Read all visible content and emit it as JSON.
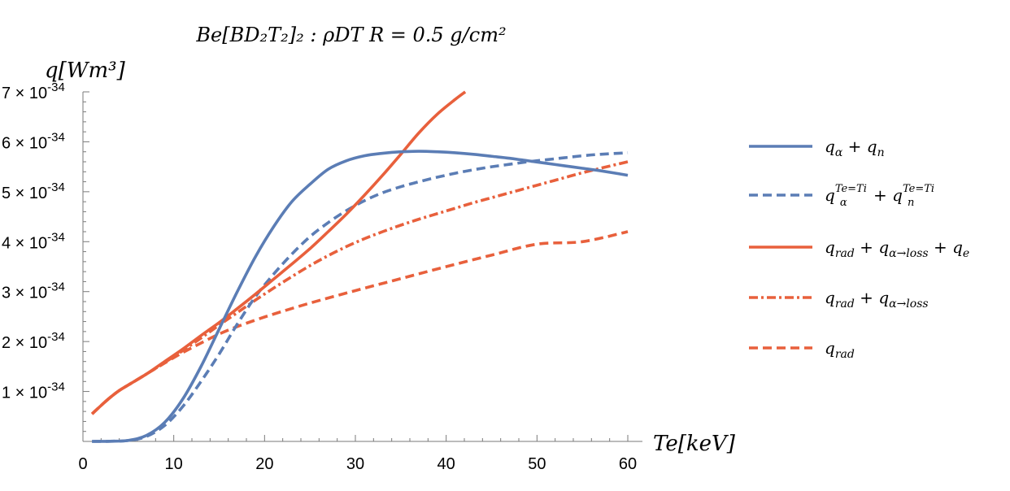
{
  "chart_data": {
    "type": "line",
    "title": "Be[BD₂T₂]₂ : ρDT R = 0.5 g/cm²",
    "ylabel": "q[Wm³]",
    "xlabel": "Te[keV]",
    "xlim": [
      0,
      60
    ],
    "ylim": [
      0,
      7e-34
    ],
    "x_ticks": [
      0,
      10,
      20,
      30,
      40,
      50,
      60
    ],
    "x_tick_labels": [
      "0",
      "10",
      "20",
      "30",
      "40",
      "50",
      "60"
    ],
    "y_ticks": [
      1e-34,
      2e-34,
      3e-34,
      4e-34,
      5e-34,
      6e-34,
      7e-34
    ],
    "y_tick_labels": [
      {
        "mantissa": "1",
        "exponent": "-34"
      },
      {
        "mantissa": "2",
        "exponent": "-34"
      },
      {
        "mantissa": "3",
        "exponent": "-34"
      },
      {
        "mantissa": "4",
        "exponent": "-34"
      },
      {
        "mantissa": "5",
        "exponent": "-34"
      },
      {
        "mantissa": "6",
        "exponent": "-34"
      },
      {
        "mantissa": "7",
        "exponent": "-34"
      }
    ],
    "grid": false,
    "legend_position": "right",
    "series": [
      {
        "name": "qα + qn",
        "color": "#5b7db5",
        "dash": "solid",
        "x": [
          1,
          3,
          5,
          7,
          9,
          11,
          13,
          15,
          17,
          19,
          21,
          23,
          25,
          27,
          29,
          31,
          33,
          35,
          37,
          39,
          41,
          43,
          45,
          47,
          49,
          51,
          53,
          55,
          57,
          60
        ],
        "y": [
          0.0,
          0.003,
          0.02,
          0.12,
          0.38,
          0.85,
          1.5,
          2.25,
          3.0,
          3.7,
          4.3,
          4.8,
          5.15,
          5.45,
          5.62,
          5.72,
          5.77,
          5.8,
          5.81,
          5.8,
          5.78,
          5.75,
          5.71,
          5.67,
          5.62,
          5.57,
          5.52,
          5.47,
          5.42,
          5.33
        ]
      },
      {
        "name": "qα(Te=Ti) + qn(Te=Ti)",
        "color": "#5b7db5",
        "dash": "dashed",
        "x": [
          1,
          3,
          5,
          7,
          9,
          11,
          13,
          15,
          17,
          19,
          21,
          23,
          25,
          27,
          29,
          31,
          33,
          35,
          37,
          39,
          41,
          43,
          45,
          47,
          49,
          51,
          53,
          55,
          57,
          60
        ],
        "y": [
          0.0,
          0.003,
          0.018,
          0.1,
          0.32,
          0.7,
          1.2,
          1.75,
          2.35,
          2.9,
          3.35,
          3.75,
          4.1,
          4.38,
          4.62,
          4.82,
          4.98,
          5.1,
          5.2,
          5.29,
          5.37,
          5.44,
          5.5,
          5.55,
          5.6,
          5.64,
          5.68,
          5.72,
          5.75,
          5.78
        ]
      },
      {
        "name": "qrad + qα→loss + qe",
        "color": "#e8603c",
        "dash": "solid",
        "x": [
          1,
          2,
          3,
          4,
          5,
          7,
          9,
          11,
          13,
          15,
          17,
          19,
          21,
          23,
          25,
          27,
          29,
          31,
          33,
          35,
          37,
          39,
          41,
          42.1
        ],
        "y": [
          0.55,
          0.72,
          0.88,
          1.02,
          1.13,
          1.35,
          1.6,
          1.85,
          2.12,
          2.38,
          2.66,
          2.95,
          3.25,
          3.55,
          3.86,
          4.2,
          4.55,
          4.93,
          5.33,
          5.75,
          6.18,
          6.55,
          6.85,
          7.0
        ]
      },
      {
        "name": "qrad + qα→loss",
        "color": "#e8603c",
        "dash": "dashdot",
        "x": [
          1,
          2,
          3,
          4,
          5,
          7,
          9,
          11,
          13,
          15,
          17,
          19,
          21,
          23,
          25,
          27,
          29,
          31,
          33,
          35,
          37,
          39,
          41,
          43,
          45,
          47,
          49,
          51,
          53,
          55,
          57,
          60
        ],
        "y": [
          0.55,
          0.72,
          0.88,
          1.02,
          1.13,
          1.35,
          1.58,
          1.82,
          2.07,
          2.33,
          2.58,
          2.83,
          3.07,
          3.3,
          3.52,
          3.72,
          3.9,
          4.06,
          4.2,
          4.33,
          4.45,
          4.56,
          4.67,
          4.78,
          4.88,
          4.98,
          5.08,
          5.18,
          5.28,
          5.38,
          5.47,
          5.6
        ]
      },
      {
        "name": "qrad",
        "color": "#e8603c",
        "dash": "dashed",
        "x": [
          1,
          2,
          3,
          4,
          5,
          7,
          9,
          11,
          13,
          15,
          17,
          19,
          21,
          25,
          30,
          35,
          40,
          45,
          50,
          55,
          60
        ],
        "y": [
          0.55,
          0.72,
          0.88,
          1.02,
          1.13,
          1.35,
          1.57,
          1.78,
          1.97,
          2.15,
          2.3,
          2.43,
          2.55,
          2.77,
          3.02,
          3.26,
          3.5,
          3.73,
          3.95,
          4.0,
          4.2
        ]
      }
    ]
  },
  "legend": [
    {
      "main": "q",
      "sub": "α",
      "op": " + ",
      "main2": "q",
      "sub2": "n",
      "color": "#5b7db5",
      "dash": "solid"
    },
    {
      "main": "q",
      "sub": "α",
      "sup": "Te=Ti",
      "op": " + ",
      "main2": "q",
      "sub2": "n",
      "sup2": "Te=Ti",
      "color": "#5b7db5",
      "dash": "dashed"
    },
    {
      "main": "q",
      "sub": "rad",
      "op": " + ",
      "main2": "q",
      "sub2": "α→loss",
      "op2": " + ",
      "main3": "q",
      "sub3": "e",
      "color": "#e8603c",
      "dash": "solid"
    },
    {
      "main": "q",
      "sub": "rad",
      "op": " + ",
      "main2": "q",
      "sub2": "α→loss",
      "color": "#e8603c",
      "dash": "dashdot"
    },
    {
      "main": "q",
      "sub": "rad",
      "color": "#e8603c",
      "dash": "dashed"
    }
  ]
}
